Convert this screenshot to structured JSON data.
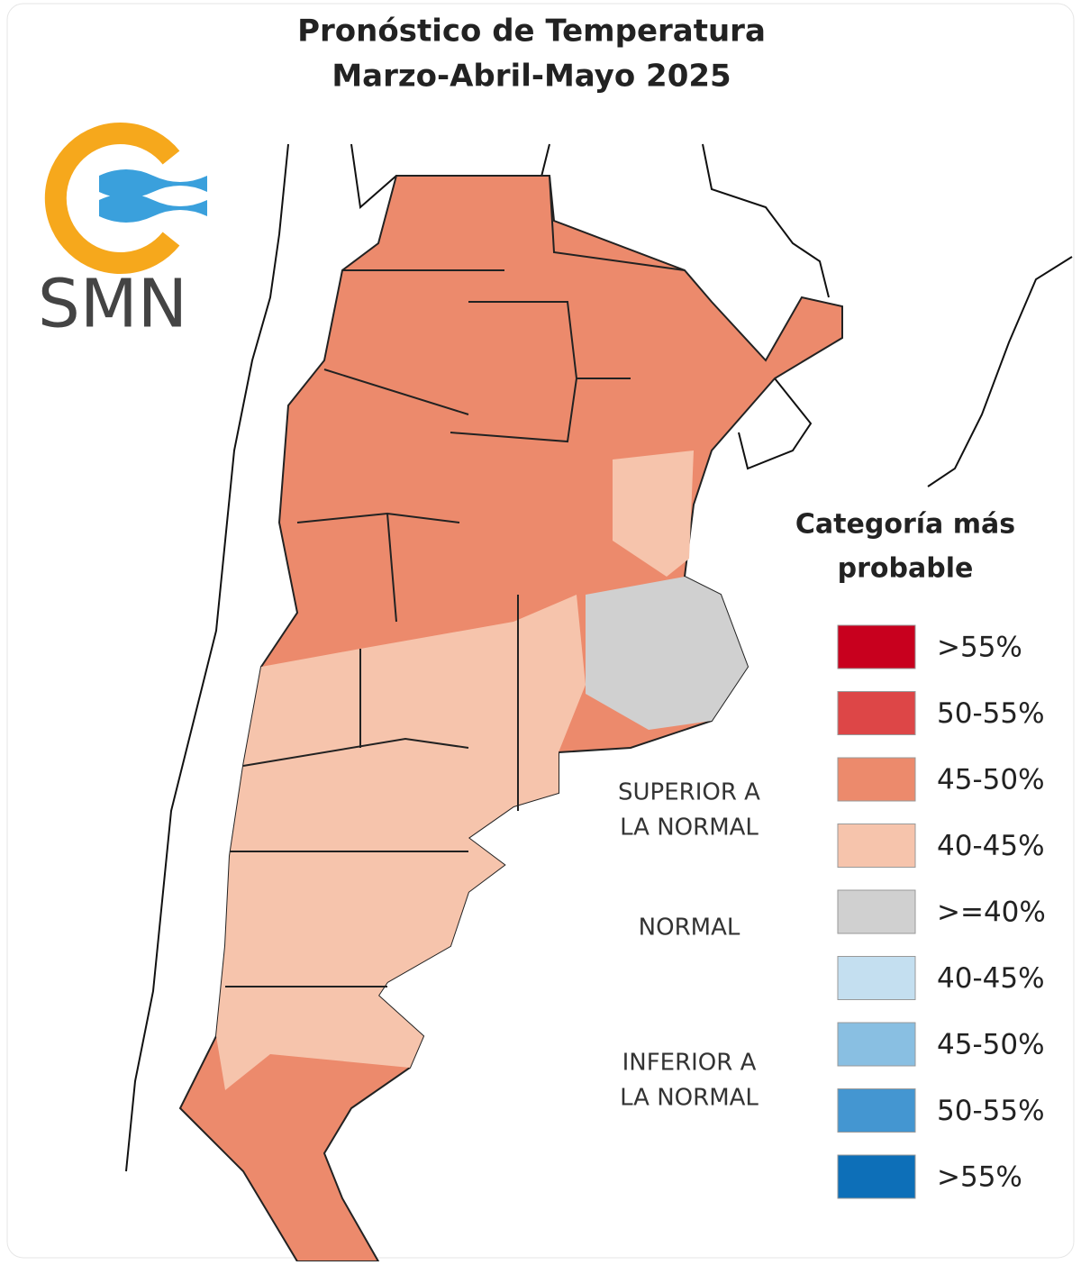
{
  "header": {
    "title_lines": [
      "Pronóstico de Temperatura",
      "Marzo-Abril-Mayo 2025"
    ]
  },
  "logo": {
    "text": "SMN"
  },
  "legend": {
    "title_lines": [
      "Categoría más",
      "probable"
    ],
    "items": [
      {
        "label": ">55%",
        "color": "#c8001e"
      },
      {
        "label": "50-55%",
        "color": "#dd4647"
      },
      {
        "label": "45-50%",
        "color": "#ec8a6c"
      },
      {
        "label": "40-45%",
        "color": "#f6c4ac"
      },
      {
        "label": ">=40%",
        "color": "#d0d0d0"
      },
      {
        "label": "40-45%",
        "color": "#c4dff0"
      },
      {
        "label": "45-50%",
        "color": "#89bfe2"
      },
      {
        "label": "50-55%",
        "color": "#4496d1"
      },
      {
        "label": ">55%",
        "color": "#0d6fb8"
      }
    ]
  },
  "groups": [
    {
      "lines": [
        "SUPERIOR A",
        "LA NORMAL"
      ]
    },
    {
      "lines": [
        "NORMAL"
      ]
    },
    {
      "lines": [
        "INFERIOR A",
        "LA NORMAL"
      ]
    }
  ]
}
